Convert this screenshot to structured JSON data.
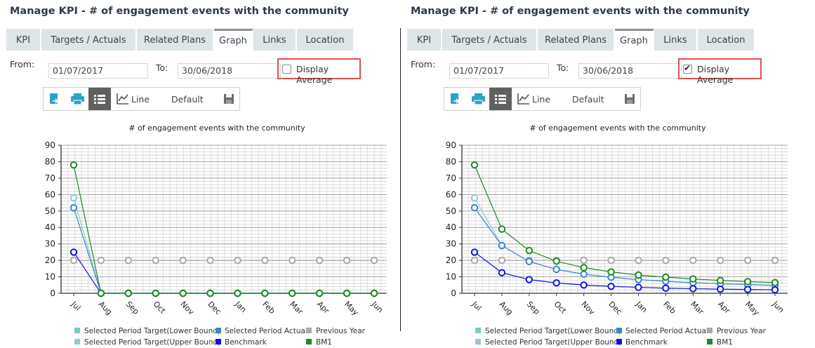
{
  "panels": [
    {
      "id": "left",
      "title": "Manage KPI - # of engagement events with the community",
      "tabs": [
        {
          "label": "KPI",
          "active": false
        },
        {
          "label": "Targets / Actuals",
          "active": false
        },
        {
          "label": "Related Plans",
          "active": false
        },
        {
          "label": "Graph",
          "active": true
        },
        {
          "label": "Links",
          "active": false
        },
        {
          "label": "Location",
          "active": false
        }
      ],
      "from_label": "From:",
      "from_value": "01/07/2017",
      "to_label": "To:",
      "to_value": "30/06/2018",
      "display_average": {
        "label": "Display Average",
        "checked": false
      },
      "toolbar": {
        "line_label": "Line",
        "default_label": "Default"
      },
      "icons": [
        "export-icon",
        "print-icon",
        "list-icon",
        "line-chart-icon",
        "save-icon"
      ]
    },
    {
      "id": "right",
      "title": "Manage KPI - # of engagement events with the community",
      "tabs": [
        {
          "label": "KPI",
          "active": false
        },
        {
          "label": "Targets / Actuals",
          "active": false
        },
        {
          "label": "Related Plans",
          "active": false
        },
        {
          "label": "Graph",
          "active": true
        },
        {
          "label": "Links",
          "active": false
        },
        {
          "label": "Location",
          "active": false
        }
      ],
      "from_label": "From:",
      "from_value": "01/07/2017",
      "to_label": "To:",
      "to_value": "30/06/2018",
      "display_average": {
        "label": "Display Average",
        "checked": true
      },
      "toolbar": {
        "line_label": "Line",
        "default_label": "Default"
      },
      "icons": [
        "export-icon",
        "print-icon",
        "list-icon",
        "line-chart-icon",
        "save-icon"
      ]
    }
  ],
  "colors": {
    "target_lower": "#7fc4c4",
    "actual": "#3b86c8",
    "previous_year": "#a9a9a9",
    "target_upper": "#8fc9d3",
    "benchmark": "#1010e0",
    "bm1": "#1e8a1e",
    "highlight": "#d9534f"
  },
  "chart_data": [
    {
      "type": "line",
      "title": "# of engagement events with the community",
      "categories": [
        "Jul",
        "Aug",
        "Sep",
        "Oct",
        "Nov",
        "Dec",
        "Jan",
        "Feb",
        "Mar",
        "Apr",
        "May",
        "Jun"
      ],
      "ylim": [
        0,
        90
      ],
      "yticks": [
        0,
        10,
        20,
        30,
        40,
        50,
        60,
        70,
        80,
        90
      ],
      "grid": true,
      "legend_position": "bottom",
      "legend": [
        "Selected Period Target(Lower Bound)",
        "Selected Period Actual",
        "Previous Year",
        "Selected Period Target(Upper Bound)",
        "Benchmark",
        "BM1"
      ],
      "series": [
        {
          "name": "Previous Year",
          "color_key": "previous_year",
          "values": [
            20,
            20,
            20,
            20,
            20,
            20,
            20,
            20,
            20,
            20,
            20,
            20
          ]
        },
        {
          "name": "Selected Period Target(Upper Bound)",
          "color_key": "target_upper",
          "values": [
            58,
            0,
            0,
            0,
            0,
            0,
            0,
            0,
            0,
            0,
            0,
            0
          ]
        },
        {
          "name": "Selected Period Actual",
          "color_key": "actual",
          "values": [
            52,
            0,
            0,
            0,
            0,
            0,
            0,
            0,
            0,
            0,
            0,
            0
          ]
        },
        {
          "name": "Benchmark",
          "color_key": "benchmark",
          "values": [
            25,
            0,
            0,
            0,
            0,
            0,
            0,
            0,
            0,
            0,
            0,
            0
          ]
        },
        {
          "name": "BM1",
          "color_key": "bm1",
          "values": [
            78,
            0,
            0,
            0,
            0,
            0,
            0,
            0,
            0,
            0,
            0,
            0
          ]
        }
      ]
    },
    {
      "type": "line",
      "title": "# of engagement events with the community",
      "categories": [
        "Jul",
        "Aug",
        "Sep",
        "Oct",
        "Nov",
        "Dec",
        "Jan",
        "Feb",
        "Mar",
        "Apr",
        "May",
        "Jun"
      ],
      "ylim": [
        0,
        90
      ],
      "yticks": [
        0,
        10,
        20,
        30,
        40,
        50,
        60,
        70,
        80,
        90
      ],
      "grid": true,
      "legend_position": "bottom",
      "legend": [
        "Selected Period Target(Lower Bound)",
        "Selected Period Actual",
        "Previous Year",
        "Selected Period Target(Upper Bound)",
        "Benchmark",
        "BM1"
      ],
      "series": [
        {
          "name": "Previous Year",
          "color_key": "previous_year",
          "values": [
            20,
            20,
            20,
            20,
            20,
            20,
            20,
            20,
            20,
            20,
            20,
            20
          ]
        },
        {
          "name": "Selected Period Target(Upper Bound)",
          "color_key": "target_upper",
          "values": [
            58,
            29,
            19.3,
            14.5,
            11.6,
            9.7,
            8.3,
            7.3,
            6.4,
            5.8,
            5.3,
            4.8
          ]
        },
        {
          "name": "Selected Period Actual",
          "color_key": "actual",
          "values": [
            52,
            29,
            19.3,
            14.5,
            11.6,
            9.7,
            8.3,
            7.3,
            6.4,
            5.8,
            5.3,
            4.8
          ]
        },
        {
          "name": "Benchmark",
          "color_key": "benchmark",
          "values": [
            25,
            12.5,
            8.3,
            6.3,
            5,
            4.2,
            3.6,
            3.1,
            2.8,
            2.5,
            2.3,
            2.1
          ]
        },
        {
          "name": "BM1",
          "color_key": "bm1",
          "values": [
            78,
            39,
            26,
            19.5,
            15.6,
            13,
            11.1,
            9.8,
            8.7,
            7.8,
            7.1,
            6.5
          ]
        }
      ]
    }
  ]
}
